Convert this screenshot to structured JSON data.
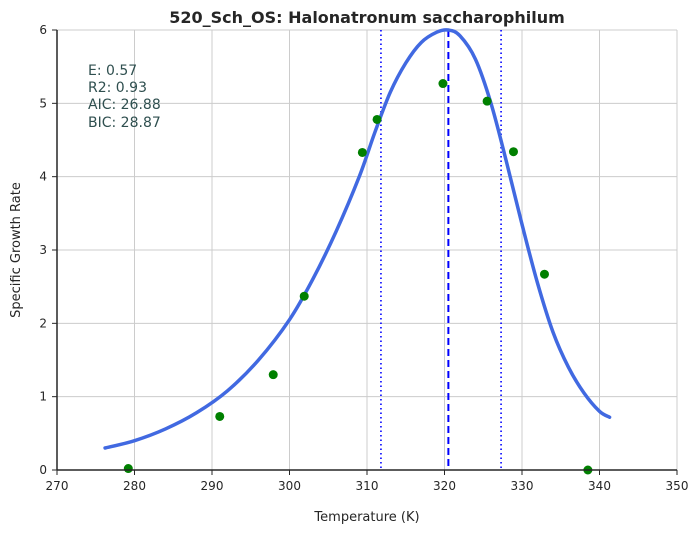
{
  "chart_data": {
    "type": "scatter",
    "title": "520_Sch_OS: Halonatronum saccharophilum",
    "xlabel": "Temperature (K)",
    "ylabel": "Specific Growth Rate",
    "xlim": [
      270,
      350
    ],
    "ylim": [
      0,
      6
    ],
    "xticks": [
      "270",
      "280",
      "290",
      "300",
      "310",
      "320",
      "330",
      "340",
      "350"
    ],
    "yticks": [
      "0",
      "1",
      "2",
      "3",
      "4",
      "5",
      "6"
    ],
    "grid": true,
    "colors": {
      "points": "#008000",
      "fit": "#4169e1",
      "peak_line": "#0000ff",
      "bound_lines": "#0000ff",
      "grid": "#cccccc",
      "stats_text": "#2f4f4f"
    },
    "stats": [
      "E:  0.57",
      "R2:  0.93",
      "AIC: 26.88",
      "BIC: 28.87"
    ],
    "points": [
      {
        "x": 279.2,
        "y": 0.02
      },
      {
        "x": 291.0,
        "y": 0.73
      },
      {
        "x": 297.9,
        "y": 1.3
      },
      {
        "x": 301.9,
        "y": 2.37
      },
      {
        "x": 309.4,
        "y": 4.33
      },
      {
        "x": 311.3,
        "y": 4.78
      },
      {
        "x": 319.8,
        "y": 5.27
      },
      {
        "x": 325.5,
        "y": 5.03
      },
      {
        "x": 328.9,
        "y": 4.34
      },
      {
        "x": 332.9,
        "y": 2.67
      },
      {
        "x": 338.5,
        "y": 0.0
      }
    ],
    "fit_curve": {
      "x": [
        276.2,
        280,
        284,
        288,
        292,
        296,
        300,
        303,
        306,
        309,
        311,
        313,
        315,
        317,
        319,
        320.5,
        322,
        324,
        326,
        328,
        330,
        332,
        334,
        336,
        338,
        340,
        341.3
      ],
      "y": [
        0.3,
        0.4,
        0.56,
        0.78,
        1.08,
        1.5,
        2.05,
        2.6,
        3.25,
        4.0,
        4.6,
        5.15,
        5.55,
        5.83,
        5.97,
        6.0,
        5.92,
        5.6,
        5.0,
        4.2,
        3.35,
        2.55,
        1.88,
        1.4,
        1.05,
        0.8,
        0.72
      ]
    },
    "peak_line_x": 320.5,
    "bound_lines_x": [
      311.8,
      327.3
    ]
  }
}
